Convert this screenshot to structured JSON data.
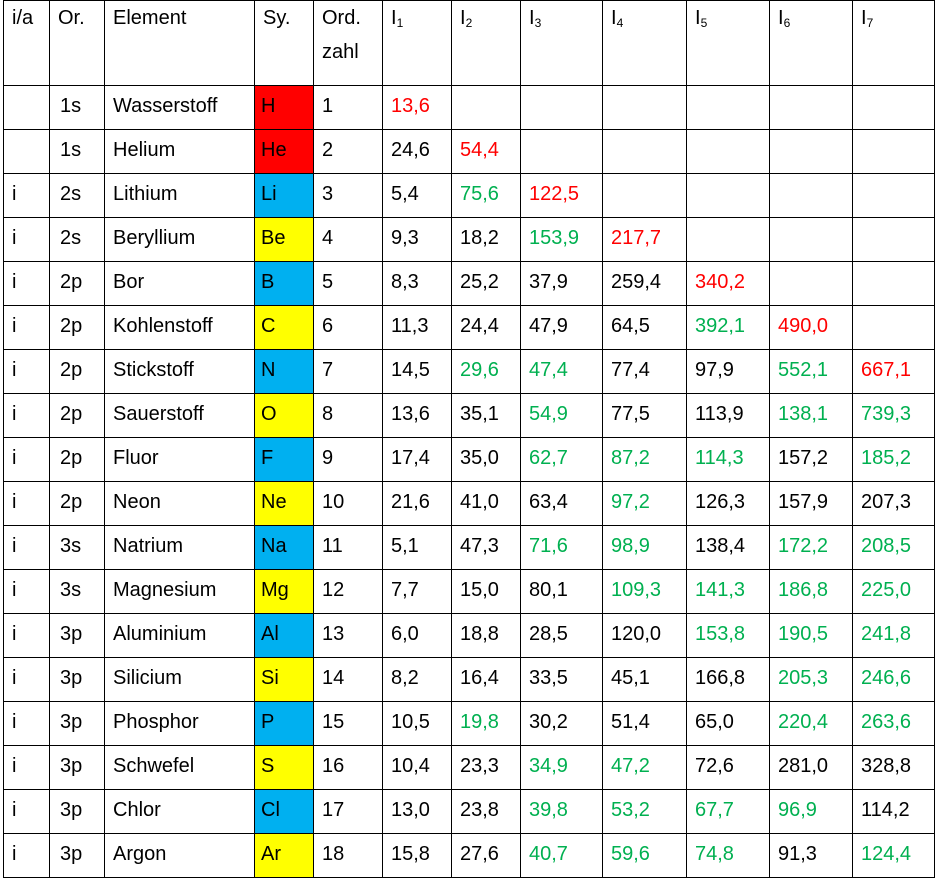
{
  "colors": {
    "red_fill": "#ff0000",
    "blue_fill": "#00b0f0",
    "yellow_fill": "#ffff00",
    "red_text": "#ff0000",
    "green_text": "#00b050",
    "black_text": "#000000"
  },
  "headers": {
    "ia": "i/a",
    "or": "Or.",
    "element": "Element",
    "sy": "Sy.",
    "ord_line1": "Ord.",
    "ord_line2": "zahl",
    "i_labels": [
      "I",
      "I",
      "I",
      "I",
      "I",
      "I",
      "I"
    ],
    "i_subs": [
      "1",
      "2",
      "3",
      "4",
      "5",
      "6",
      "7"
    ]
  },
  "rows": [
    {
      "ia": "",
      "or": "1s",
      "name": "Wasserstoff",
      "sy": "H",
      "fill": "red",
      "z": "1",
      "vals": [
        [
          "13,6",
          "red"
        ]
      ]
    },
    {
      "ia": "",
      "or": "1s",
      "name": "Helium",
      "sy": "He",
      "fill": "red",
      "z": "2",
      "vals": [
        [
          "24,6",
          "black"
        ],
        [
          "54,4",
          "red"
        ]
      ]
    },
    {
      "ia": "i",
      "or": "2s",
      "name": "Lithium",
      "sy": "Li",
      "fill": "blue",
      "z": "3",
      "vals": [
        [
          "5,4",
          "black"
        ],
        [
          "75,6",
          "green"
        ],
        [
          "122,5",
          "red"
        ]
      ]
    },
    {
      "ia": "i",
      "or": "2s",
      "name": "Beryllium",
      "sy": "Be",
      "fill": "yellow",
      "z": "4",
      "vals": [
        [
          "9,3",
          "black"
        ],
        [
          "18,2",
          "black"
        ],
        [
          "153,9",
          "green"
        ],
        [
          "217,7",
          "red"
        ]
      ]
    },
    {
      "ia": "i",
      "or": "2p",
      "name": "Bor",
      "sy": "B",
      "fill": "blue",
      "z": "5",
      "vals": [
        [
          "8,3",
          "black"
        ],
        [
          "25,2",
          "black"
        ],
        [
          "37,9",
          "black"
        ],
        [
          "259,4",
          "black"
        ],
        [
          "340,2",
          "red"
        ]
      ]
    },
    {
      "ia": "i",
      "or": "2p",
      "name": "Kohlenstoff",
      "sy": "C",
      "fill": "yellow",
      "z": "6",
      "vals": [
        [
          "11,3",
          "black"
        ],
        [
          "24,4",
          "black"
        ],
        [
          "47,9",
          "black"
        ],
        [
          "64,5",
          "black"
        ],
        [
          "392,1",
          "green"
        ],
        [
          "490,0",
          "red"
        ]
      ]
    },
    {
      "ia": "i",
      "or": "2p",
      "name": "Stickstoff",
      "sy": "N",
      "fill": "blue",
      "z": "7",
      "vals": [
        [
          "14,5",
          "black"
        ],
        [
          "29,6",
          "green"
        ],
        [
          "47,4",
          "green"
        ],
        [
          "77,4",
          "black"
        ],
        [
          "97,9",
          "black"
        ],
        [
          "552,1",
          "green"
        ],
        [
          "667,1",
          "red"
        ]
      ]
    },
    {
      "ia": "i",
      "or": "2p",
      "name": "Sauerstoff",
      "sy": "O",
      "fill": "yellow",
      "z": "8",
      "vals": [
        [
          "13,6",
          "black"
        ],
        [
          "35,1",
          "black"
        ],
        [
          "54,9",
          "green"
        ],
        [
          "77,5",
          "black"
        ],
        [
          "113,9",
          "black"
        ],
        [
          "138,1",
          "green"
        ],
        [
          "739,3",
          "green"
        ]
      ]
    },
    {
      "ia": "i",
      "or": "2p",
      "name": "Fluor",
      "sy": "F",
      "fill": "blue",
      "z": "9",
      "vals": [
        [
          "17,4",
          "black"
        ],
        [
          "35,0",
          "black"
        ],
        [
          "62,7",
          "green"
        ],
        [
          "87,2",
          "green"
        ],
        [
          "114,3",
          "green"
        ],
        [
          "157,2",
          "black"
        ],
        [
          "185,2",
          "green"
        ]
      ]
    },
    {
      "ia": "i",
      "or": "2p",
      "name": "Neon",
      "sy": "Ne",
      "fill": "yellow",
      "z": "10",
      "vals": [
        [
          "21,6",
          "black"
        ],
        [
          "41,0",
          "black"
        ],
        [
          "63,4",
          "black"
        ],
        [
          "97,2",
          "green"
        ],
        [
          "126,3",
          "black"
        ],
        [
          "157,9",
          "black"
        ],
        [
          "207,3",
          "black"
        ]
      ]
    },
    {
      "ia": "i",
      "or": "3s",
      "name": "Natrium",
      "sy": "Na",
      "fill": "blue",
      "z": "11",
      "vals": [
        [
          "5,1",
          "black"
        ],
        [
          "47,3",
          "black"
        ],
        [
          "71,6",
          "green"
        ],
        [
          "98,9",
          "green"
        ],
        [
          "138,4",
          "black"
        ],
        [
          "172,2",
          "green"
        ],
        [
          "208,5",
          "green"
        ]
      ]
    },
    {
      "ia": "i",
      "or": "3s",
      "name": "Magnesium",
      "sy": "Mg",
      "fill": "yellow",
      "z": "12",
      "vals": [
        [
          "7,7",
          "black"
        ],
        [
          "15,0",
          "black"
        ],
        [
          "80,1",
          "black"
        ],
        [
          "109,3",
          "green"
        ],
        [
          "141,3",
          "green"
        ],
        [
          "186,8",
          "green"
        ],
        [
          "225,0",
          "green"
        ]
      ]
    },
    {
      "ia": "i",
      "or": "3p",
      "name": "Aluminium",
      "sy": "Al",
      "fill": "blue",
      "z": "13",
      "vals": [
        [
          "6,0",
          "black"
        ],
        [
          "18,8",
          "black"
        ],
        [
          "28,5",
          "black"
        ],
        [
          "120,0",
          "black"
        ],
        [
          "153,8",
          "green"
        ],
        [
          "190,5",
          "green"
        ],
        [
          "241,8",
          "green"
        ]
      ]
    },
    {
      "ia": "i",
      "or": "3p",
      "name": "Silicium",
      "sy": "Si",
      "fill": "yellow",
      "z": "14",
      "vals": [
        [
          "8,2",
          "black"
        ],
        [
          "16,4",
          "black"
        ],
        [
          "33,5",
          "black"
        ],
        [
          "45,1",
          "black"
        ],
        [
          "166,8",
          "black"
        ],
        [
          "205,3",
          "green"
        ],
        [
          "246,6",
          "green"
        ]
      ]
    },
    {
      "ia": "i",
      "or": "3p",
      "name": "Phosphor",
      "sy": "P",
      "fill": "blue",
      "z": "15",
      "vals": [
        [
          "10,5",
          "black"
        ],
        [
          "19,8",
          "green"
        ],
        [
          "30,2",
          "black"
        ],
        [
          "51,4",
          "black"
        ],
        [
          "65,0",
          "black"
        ],
        [
          "220,4",
          "green"
        ],
        [
          "263,6",
          "green"
        ]
      ]
    },
    {
      "ia": "i",
      "or": "3p",
      "name": "Schwefel",
      "sy": "S",
      "fill": "yellow",
      "z": "16",
      "vals": [
        [
          "10,4",
          "black"
        ],
        [
          "23,3",
          "black"
        ],
        [
          "34,9",
          "green"
        ],
        [
          "47,2",
          "green"
        ],
        [
          "72,6",
          "black"
        ],
        [
          "281,0",
          "black"
        ],
        [
          "328,8",
          "black"
        ]
      ]
    },
    {
      "ia": "i",
      "or": "3p",
      "name": "Chlor",
      "sy": "Cl",
      "fill": "blue",
      "z": "17",
      "vals": [
        [
          "13,0",
          "black"
        ],
        [
          "23,8",
          "black"
        ],
        [
          "39,8",
          "green"
        ],
        [
          "53,2",
          "green"
        ],
        [
          "67,7",
          "green"
        ],
        [
          "96,9",
          "green"
        ],
        [
          "114,2",
          "black"
        ]
      ]
    },
    {
      "ia": "i",
      "or": "3p",
      "name": "Argon",
      "sy": "Ar",
      "fill": "yellow",
      "z": "18",
      "vals": [
        [
          "15,8",
          "black"
        ],
        [
          "27,6",
          "black"
        ],
        [
          "40,7",
          "green"
        ],
        [
          "59,6",
          "green"
        ],
        [
          "74,8",
          "green"
        ],
        [
          "91,3",
          "black"
        ],
        [
          "124,4",
          "green"
        ]
      ]
    }
  ]
}
